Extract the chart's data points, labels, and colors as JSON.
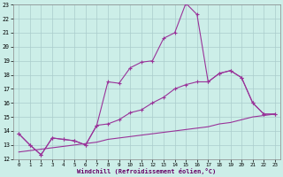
{
  "xlabel": "Windchill (Refroidissement éolien,°C)",
  "x": [
    0,
    1,
    2,
    3,
    4,
    5,
    6,
    7,
    8,
    9,
    10,
    11,
    12,
    13,
    14,
    15,
    16,
    17,
    18,
    19,
    20,
    21,
    22,
    23
  ],
  "line1": [
    13.8,
    13.0,
    12.3,
    13.5,
    13.4,
    13.3,
    13.0,
    14.4,
    17.5,
    17.4,
    18.5,
    18.9,
    19.0,
    20.6,
    21.0,
    23.1,
    22.3,
    17.5,
    18.1,
    18.3,
    17.8,
    16.0,
    15.2,
    15.2
  ],
  "line2": [
    13.8,
    13.0,
    12.3,
    13.5,
    13.4,
    13.3,
    13.0,
    14.4,
    14.5,
    14.8,
    15.3,
    15.5,
    16.0,
    16.4,
    17.0,
    17.3,
    17.5,
    17.5,
    18.1,
    18.3,
    17.8,
    16.0,
    15.2,
    15.2
  ],
  "line3": [
    12.5,
    12.6,
    12.7,
    12.8,
    12.9,
    13.0,
    13.1,
    13.2,
    13.4,
    13.5,
    13.6,
    13.7,
    13.8,
    13.9,
    14.0,
    14.1,
    14.2,
    14.3,
    14.5,
    14.6,
    14.8,
    15.0,
    15.1,
    15.2
  ],
  "line_color": "#993399",
  "bg_color": "#cceee8",
  "grid_color": "#aacccc",
  "ylim_min": 12,
  "ylim_max": 23,
  "yticks": [
    12,
    13,
    14,
    15,
    16,
    17,
    18,
    19,
    20,
    21,
    22,
    23
  ],
  "xticks": [
    0,
    1,
    2,
    3,
    4,
    5,
    6,
    7,
    8,
    9,
    10,
    11,
    12,
    13,
    14,
    15,
    16,
    17,
    18,
    19,
    20,
    21,
    22,
    23
  ]
}
